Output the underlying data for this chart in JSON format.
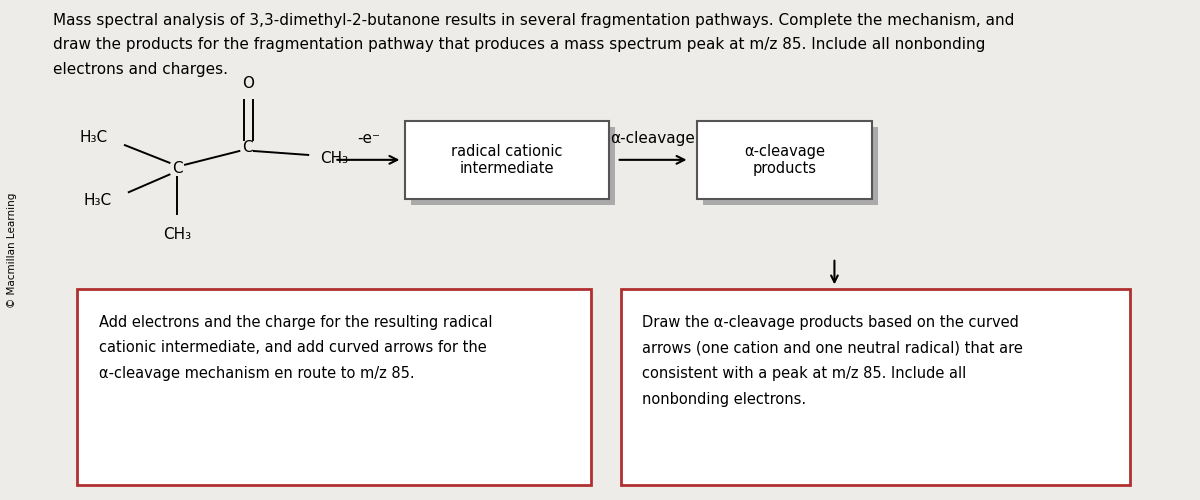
{
  "bg_color": "#eeece8",
  "title_line1": "Mass spectral analysis of 3,3-dimethyl-2-butanone results in several fragmentation pathways. Complete the mechanism, and",
  "title_line2": "draw the products for the fragmentation pathway that produces a mass spectrum peak at m/z 85. Include all nonbonding",
  "title_line3": "electrons and charges.",
  "sidebar_text": "© Macmillan Learning",
  "box1_label": "radical cationic\nintermediate",
  "box2_label": "α-cleavage\nproducts",
  "arrow1_label": "-e⁻",
  "arrow2_label": "α-cleavage",
  "box_border_color": "#b03030",
  "bottom_left_text": "Add electrons and the charge for the resulting radical\ncationic intermediate, and add curved arrows for the\nα-cleavage mechanism en route to m/z 85.",
  "bottom_right_text": "Draw the α-cleavage products based on the curved\narrows (one cation and one neutral radical) that are\nconsistent with a peak at m/z 85. Include all\nnonbonding electrons.",
  "font_size_title": 11.0,
  "font_size_body": 10.5,
  "font_size_mol": 11.0,
  "font_size_sidebar": 7.5
}
